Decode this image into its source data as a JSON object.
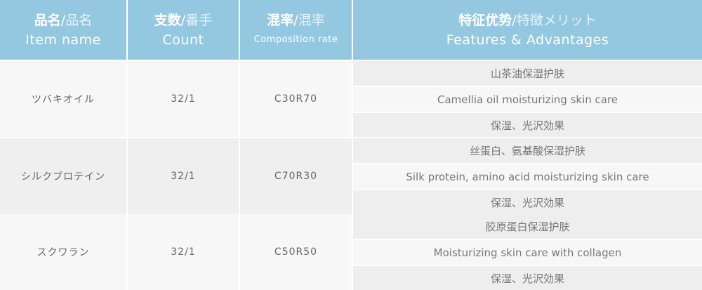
{
  "headers": [
    {
      "cn": "品名",
      "jp": "品名",
      "en": "Item name"
    },
    {
      "cn": "支数",
      "jp": "番手",
      "en": "Count"
    },
    {
      "cn": "混率",
      "jp": "混率",
      "en": "Composition rate"
    },
    {
      "cn": "特征优势",
      "jp": "特徴メリット",
      "en": "Features & Advantages"
    }
  ],
  "rows": [
    {
      "name": "ツバキオイル",
      "count": "32/1",
      "composition": "C30R70",
      "features": [
        "山茶油保湿护肤",
        "Camellia oil moisturizing skin care",
        "保湿、光沢効果"
      ]
    },
    {
      "name": "シルクプロテイン",
      "count": "32/1",
      "composition": "C70R30",
      "features": [
        "丝蛋白、氨基酸保湿护肤",
        "Silk protein, amino acid moisturizing skin care",
        "保湿、光沢効果"
      ]
    },
    {
      "name": "スクワラン",
      "count": "32/1",
      "composition": "C50R50",
      "features": [
        "胶原蛋白保湿护肤",
        "Moisturizing skin care with collagen",
        "保湿、光沢効果"
      ]
    }
  ],
  "colors": {
    "header_bg": "#94c8e0",
    "row_light": "#f7f7f7",
    "row_dark": "#efefef"
  }
}
